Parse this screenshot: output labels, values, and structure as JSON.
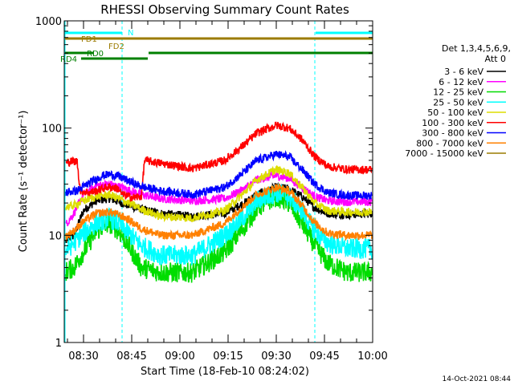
{
  "chart_data": {
    "type": "line",
    "title": "RHESSI Observing Summary Count Rates",
    "xlabel": "Start Time (18-Feb-10 08:24:02)",
    "ylabel": "Count Rate (s⁻¹ detector⁻¹)",
    "yscale": "log",
    "ylim": [
      1,
      1000
    ],
    "xlim_minutes_after_0824": [
      0,
      96
    ],
    "x_tick_labels": [
      "08:30",
      "08:45",
      "09:00",
      "09:15",
      "09:30",
      "09:45",
      "10:00"
    ],
    "x_tick_minutes": [
      6,
      21,
      36,
      51,
      66,
      81,
      96
    ],
    "y_tick_labels": [
      "1",
      "10",
      "100",
      "1000"
    ],
    "y_tick_values": [
      1,
      10,
      100,
      1000
    ],
    "grid": false,
    "legend_position": "right",
    "legend_header": [
      "Det 1,3,4,5,6,9,",
      "Att 0"
    ],
    "series": [
      {
        "name": "3 - 6 keV",
        "color": "#000000",
        "values": [
          [
            0,
            8.5
          ],
          [
            3,
            10
          ],
          [
            6,
            17
          ],
          [
            10,
            21
          ],
          [
            14,
            22
          ],
          [
            17,
            20.5
          ],
          [
            20,
            19
          ],
          [
            24,
            17.5
          ],
          [
            30,
            16
          ],
          [
            40,
            15
          ],
          [
            50,
            16
          ],
          [
            56,
            20
          ],
          [
            60,
            24
          ],
          [
            66,
            28
          ],
          [
            70,
            27
          ],
          [
            74,
            23
          ],
          [
            78,
            18
          ],
          [
            82,
            16
          ],
          [
            88,
            15.5
          ],
          [
            96,
            16
          ]
        ]
      },
      {
        "name": "6 - 12 keV",
        "color": "#ff00ff",
        "values": [
          [
            0,
            12
          ],
          [
            3,
            16
          ],
          [
            6,
            24
          ],
          [
            10,
            29
          ],
          [
            14,
            30
          ],
          [
            17,
            28.5
          ],
          [
            20,
            26.5
          ],
          [
            24,
            24
          ],
          [
            30,
            22
          ],
          [
            40,
            21
          ],
          [
            50,
            22
          ],
          [
            56,
            27
          ],
          [
            60,
            33
          ],
          [
            66,
            36
          ],
          [
            70,
            34
          ],
          [
            74,
            28
          ],
          [
            78,
            23
          ],
          [
            82,
            21
          ],
          [
            88,
            20.5
          ],
          [
            96,
            20.5
          ]
        ]
      },
      {
        "name": "12 - 25 keV",
        "color": "#00dd00",
        "values": [
          [
            0,
            4.5
          ],
          [
            3,
            5
          ],
          [
            6,
            7
          ],
          [
            10,
            11
          ],
          [
            14,
            13
          ],
          [
            17,
            11
          ],
          [
            20,
            8
          ],
          [
            24,
            5
          ],
          [
            30,
            4.5
          ],
          [
            40,
            4.5
          ],
          [
            50,
            7
          ],
          [
            56,
            12
          ],
          [
            60,
            18
          ],
          [
            66,
            23
          ],
          [
            70,
            20
          ],
          [
            74,
            13
          ],
          [
            78,
            8
          ],
          [
            82,
            5.5
          ],
          [
            88,
            4.5
          ],
          [
            96,
            4.5
          ]
        ]
      },
      {
        "name": "25 - 50 keV",
        "color": "#00ffff",
        "values": [
          [
            0,
            7
          ],
          [
            3,
            8.5
          ],
          [
            6,
            10.5
          ],
          [
            10,
            13
          ],
          [
            14,
            14.5
          ],
          [
            17,
            13
          ],
          [
            20,
            10.5
          ],
          [
            24,
            8
          ],
          [
            30,
            6.5
          ],
          [
            40,
            6.5
          ],
          [
            50,
            10
          ],
          [
            56,
            15
          ],
          [
            60,
            21
          ],
          [
            66,
            25
          ],
          [
            70,
            23
          ],
          [
            74,
            17
          ],
          [
            78,
            11
          ],
          [
            82,
            8.5
          ],
          [
            88,
            7.5
          ],
          [
            96,
            7.5
          ]
        ]
      },
      {
        "name": "50 - 100 keV",
        "color": "#dddd00",
        "values": [
          [
            0,
            18
          ],
          [
            3,
            19
          ],
          [
            6,
            21
          ],
          [
            10,
            23
          ],
          [
            14,
            24
          ],
          [
            17,
            22
          ],
          [
            20,
            20
          ],
          [
            24,
            17.5
          ],
          [
            30,
            15
          ],
          [
            40,
            14.5
          ],
          [
            50,
            17
          ],
          [
            56,
            25
          ],
          [
            60,
            33
          ],
          [
            66,
            41
          ],
          [
            70,
            38
          ],
          [
            74,
            28
          ],
          [
            78,
            20
          ],
          [
            82,
            17
          ],
          [
            88,
            16.5
          ],
          [
            96,
            16.5
          ]
        ]
      },
      {
        "name": "100 - 300 keV",
        "color": "#ff0000",
        "values": [
          [
            0,
            46
          ],
          [
            2,
            49
          ],
          [
            4,
            49
          ],
          [
            5,
            26
          ],
          [
            8,
            25
          ],
          [
            11,
            26.5
          ],
          [
            13,
            28
          ],
          [
            15,
            28
          ],
          [
            17,
            27
          ],
          [
            18,
            24
          ],
          [
            20,
            23
          ],
          [
            22,
            22.5
          ],
          [
            24,
            23
          ],
          [
            25,
            50
          ],
          [
            30,
            47
          ],
          [
            40,
            42
          ],
          [
            50,
            50
          ],
          [
            56,
            70
          ],
          [
            60,
            90
          ],
          [
            66,
            106
          ],
          [
            70,
            100
          ],
          [
            74,
            78
          ],
          [
            78,
            54
          ],
          [
            82,
            44
          ],
          [
            88,
            41
          ],
          [
            96,
            41
          ]
        ]
      },
      {
        "name": "300 - 800 keV",
        "color": "#0000ff",
        "values": [
          [
            0,
            25
          ],
          [
            4,
            26
          ],
          [
            8,
            31
          ],
          [
            12,
            36
          ],
          [
            14,
            37
          ],
          [
            17,
            35.5
          ],
          [
            20,
            32
          ],
          [
            24,
            28.5
          ],
          [
            30,
            26
          ],
          [
            40,
            24
          ],
          [
            50,
            28
          ],
          [
            56,
            39
          ],
          [
            60,
            50
          ],
          [
            66,
            57
          ],
          [
            70,
            54
          ],
          [
            74,
            41
          ],
          [
            78,
            30
          ],
          [
            82,
            25
          ],
          [
            88,
            23.5
          ],
          [
            96,
            23.5
          ]
        ]
      },
      {
        "name": "800 - 7000 keV",
        "color": "#ff8000",
        "values": [
          [
            0,
            9.5
          ],
          [
            3,
            11
          ],
          [
            6,
            13.5
          ],
          [
            10,
            16
          ],
          [
            14,
            16.5
          ],
          [
            17,
            15.5
          ],
          [
            20,
            14
          ],
          [
            24,
            11.5
          ],
          [
            30,
            10
          ],
          [
            40,
            10
          ],
          [
            50,
            13
          ],
          [
            56,
            19
          ],
          [
            60,
            24
          ],
          [
            66,
            28
          ],
          [
            70,
            26
          ],
          [
            74,
            19
          ],
          [
            78,
            13
          ],
          [
            82,
            10.5
          ],
          [
            88,
            10
          ],
          [
            96,
            10
          ]
        ]
      },
      {
        "name": "7000 - 15000 keV",
        "color": "#9b7b00",
        "values": []
      }
    ],
    "state_bars": [
      {
        "label": "N",
        "color": "#00ffff",
        "segments": [
          [
            0,
            18
          ],
          [
            78,
            96
          ]
        ]
      },
      {
        "label": "FD1",
        "color": "#9b7b00",
        "segments": [
          [
            0,
            96
          ]
        ]
      },
      {
        "label": "FD2",
        "color": "#9b7b00",
        "segments": []
      },
      {
        "label": "RD0",
        "color": "#008000",
        "segments": [
          [
            0,
            9
          ],
          [
            26,
            96
          ]
        ]
      },
      {
        "label": "RD4",
        "color": "#008000",
        "segments": [
          [
            5,
            26
          ]
        ]
      }
    ],
    "vertical_lines_minutes": [
      0,
      18,
      78,
      96
    ],
    "vertical_line_color": "#00ffff"
  },
  "footer": {
    "date_stamp": "14-Oct-2021 08:44"
  }
}
